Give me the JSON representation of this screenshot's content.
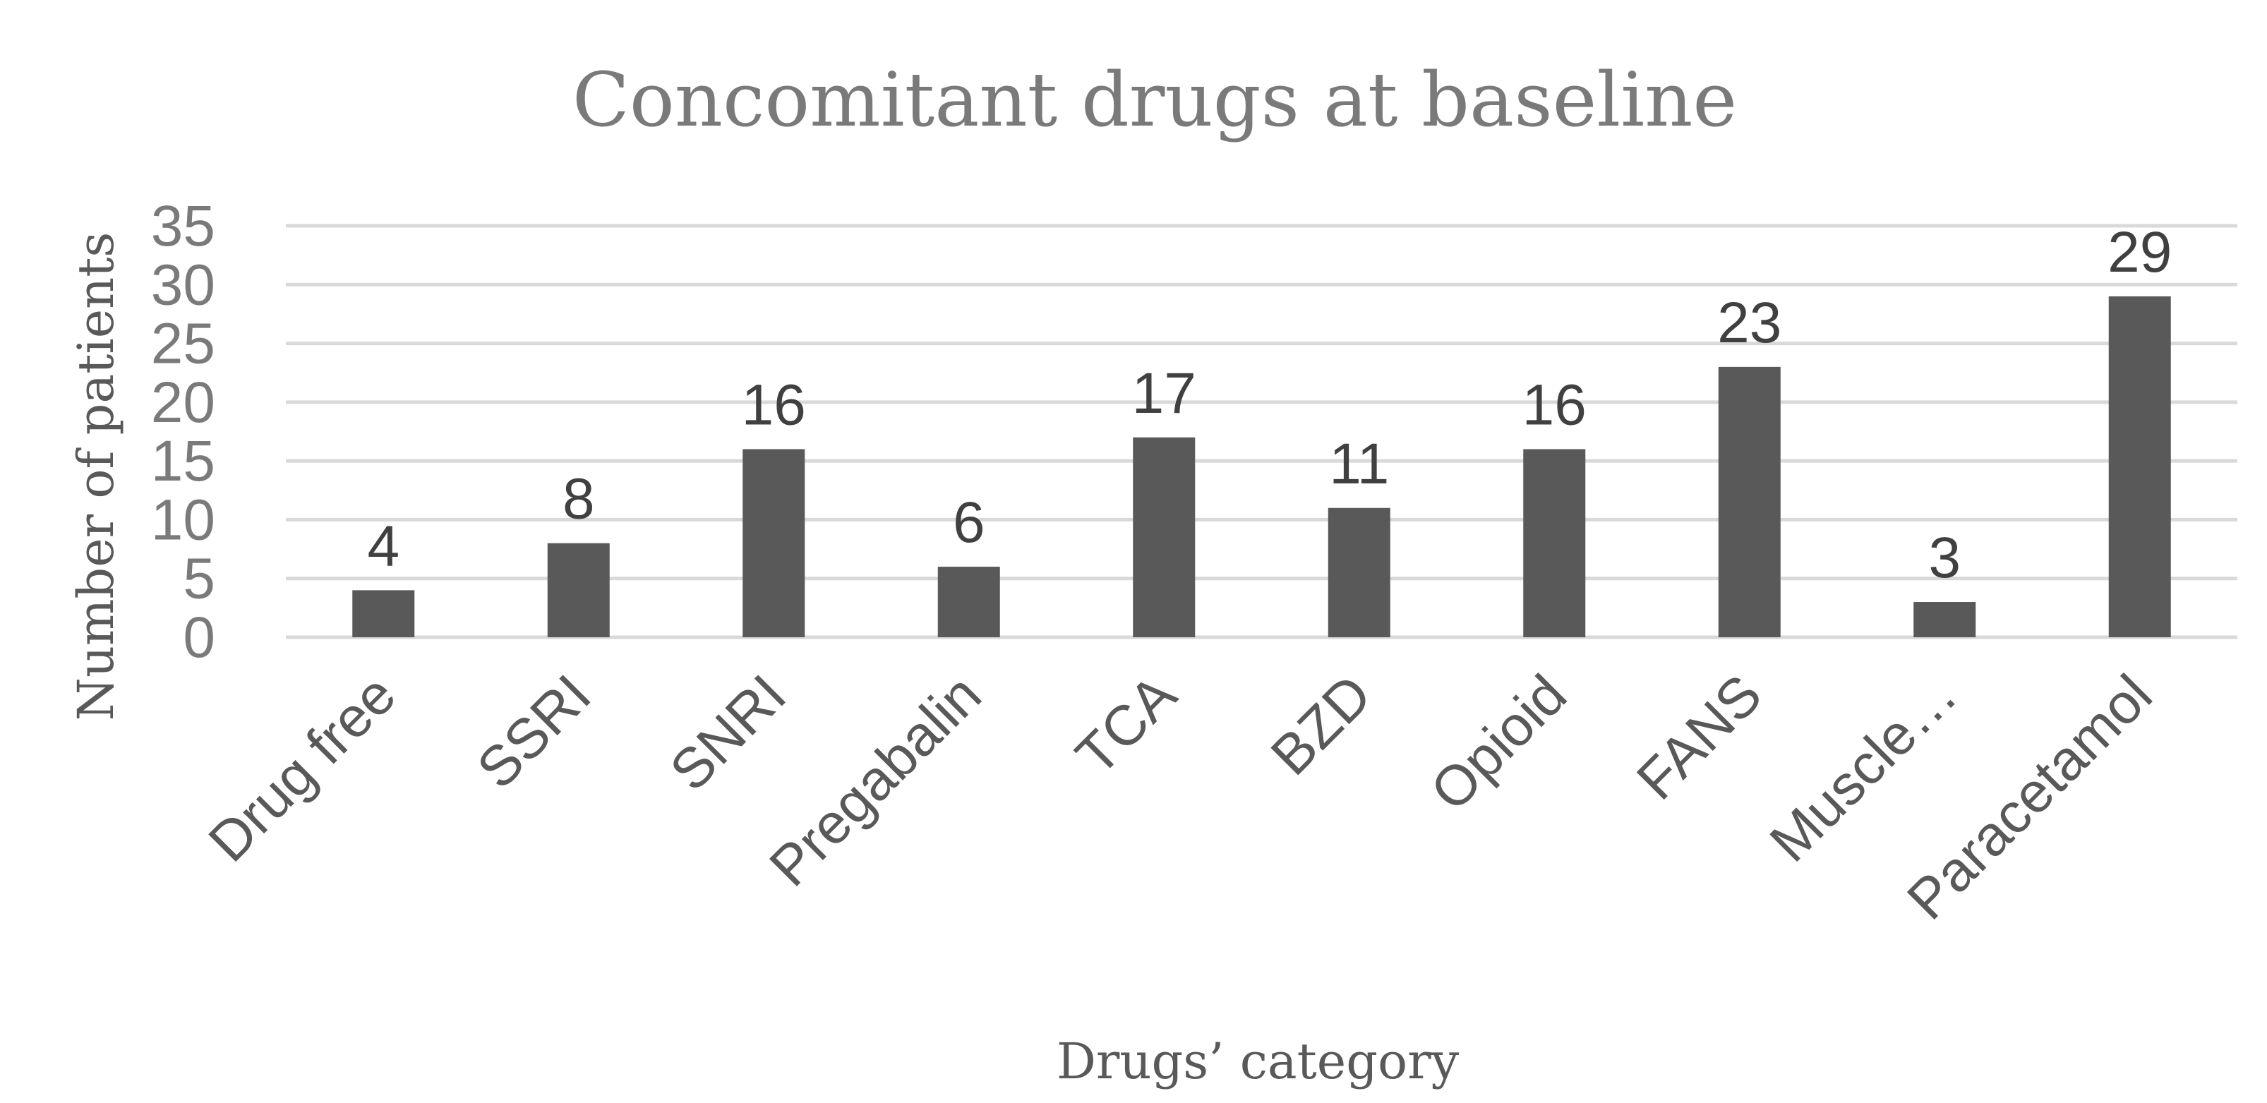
{
  "chart_data": {
    "type": "bar",
    "title": "Concomitant drugs at baseline",
    "xlabel": "Drugs’ category",
    "ylabel": "Number of patients",
    "categories": [
      "Drug free",
      "SSRI",
      "SNRI",
      "Pregabalin",
      "TCA",
      "BZD",
      "Opioid",
      "FANS",
      "Muscle…",
      "Paracetamol"
    ],
    "values": [
      4,
      8,
      16,
      6,
      17,
      11,
      16,
      23,
      3,
      29
    ],
    "ylim": [
      0,
      35
    ],
    "yticks": [
      "0",
      "5",
      "10",
      "15",
      "20",
      "25",
      "30",
      "35"
    ],
    "data_labels": [
      "4",
      "8",
      "16",
      "6",
      "17",
      "11",
      "16",
      "23",
      "3",
      "29"
    ],
    "grid": true,
    "legend": "none",
    "bar_color": "#595959",
    "grid_color": "#d9d9d9",
    "title_color": "#7a7a7a"
  }
}
